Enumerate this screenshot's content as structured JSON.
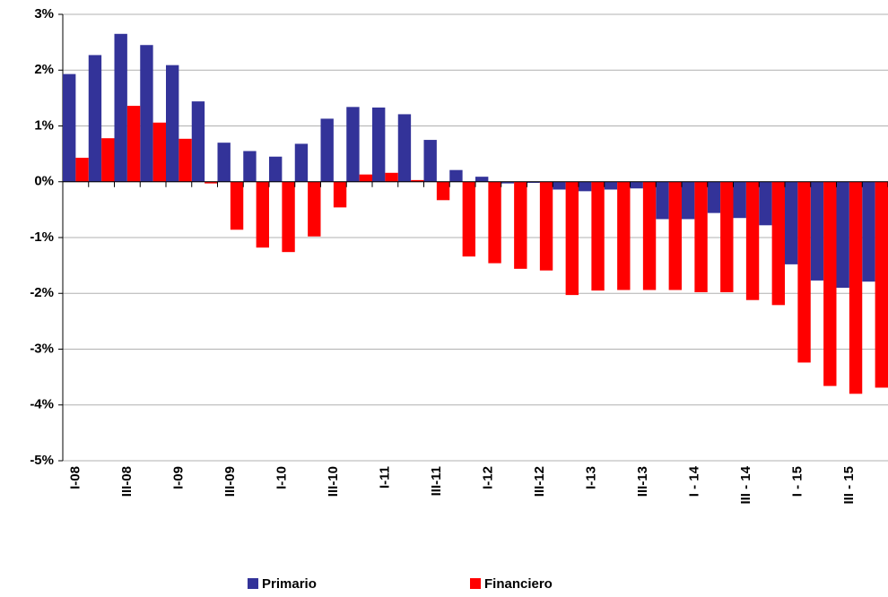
{
  "chart_data": {
    "type": "bar",
    "categories": [
      "I-08",
      null,
      "III-08",
      null,
      "I-09",
      null,
      "III-09",
      null,
      "I-10",
      null,
      "III-10",
      null,
      "I-11",
      null,
      "III-11",
      null,
      "I-12",
      null,
      "III-12",
      null,
      "I-13",
      null,
      "III-13",
      null,
      "I - 14",
      null,
      "III - 14",
      null,
      "I - 15",
      null,
      "III - 15",
      null
    ],
    "series": [
      {
        "name": "Primario",
        "color": "#333399",
        "values": [
          1.93,
          2.27,
          2.65,
          2.45,
          2.09,
          1.44,
          0.7,
          0.55,
          0.45,
          0.68,
          1.13,
          1.34,
          1.33,
          1.21,
          0.75,
          0.21,
          0.09,
          -0.03,
          -0.02,
          -0.14,
          -0.17,
          -0.14,
          -0.12,
          -0.67,
          -0.67,
          -0.56,
          -0.65,
          -0.78,
          -1.48,
          -1.77,
          -1.9,
          -1.79
        ]
      },
      {
        "name": "Financiero",
        "color": "#ff0000",
        "values": [
          0.43,
          0.78,
          1.36,
          1.06,
          0.77,
          -0.03,
          -0.86,
          -1.18,
          -1.26,
          -0.98,
          -0.46,
          0.13,
          0.16,
          0.03,
          -0.33,
          -1.34,
          -1.46,
          -1.56,
          -1.59,
          -2.03,
          -1.95,
          -1.94,
          -1.94,
          -1.94,
          -1.98,
          -1.98,
          -2.12,
          -2.21,
          -3.24,
          -3.66,
          -3.8,
          -3.69
        ]
      }
    ],
    "ylim": [
      -5,
      3
    ],
    "yticks": [
      {
        "value": -5,
        "label": "-5%"
      },
      {
        "value": -4,
        "label": "-4%"
      },
      {
        "value": -3,
        "label": "-3%"
      },
      {
        "value": -2,
        "label": "-2%"
      },
      {
        "value": -1,
        "label": "-1%"
      },
      {
        "value": 0,
        "label": "0%"
      },
      {
        "value": 1,
        "label": "1%"
      },
      {
        "value": 2,
        "label": "2%"
      },
      {
        "value": 3,
        "label": "3%"
      }
    ],
    "grid": true,
    "legend": "bottom"
  }
}
